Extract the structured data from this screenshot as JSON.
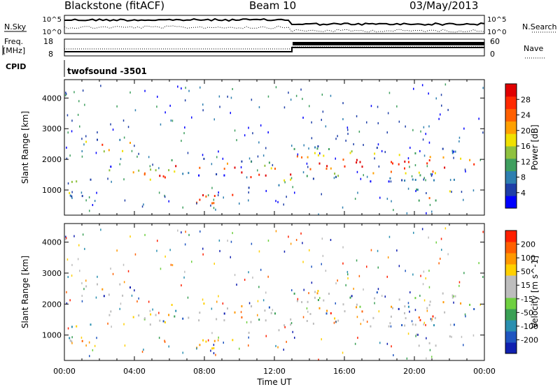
{
  "header": {
    "station": "Blackstone (fitACF)",
    "beam": "Beam 10",
    "date": "03/May/2013"
  },
  "noise_panel": {
    "left_label": "N.Sky",
    "right_label": "N.Search",
    "ticks": [
      "10^5",
      "10^0"
    ]
  },
  "freq_panel": {
    "left_label_1": "Freq.",
    "left_label_2": "[MHz]",
    "left_ticks": [
      "18",
      "8"
    ],
    "right_label": "Nave",
    "right_ticks": [
      "60",
      "0"
    ]
  },
  "cpid_panel": {
    "label": "CPID",
    "value": "twofsound -3501"
  },
  "x_axis": {
    "label": "Time UT",
    "ticks": [
      "00:00",
      "04:00",
      "08:00",
      "12:00",
      "16:00",
      "20:00",
      "00:00"
    ]
  },
  "power_panel": {
    "ylabel": "Slant Range [km]",
    "colorbar_label": "Power [dB]",
    "colorbar_ticks": [
      "28",
      "24",
      "20",
      "16",
      "12",
      "8",
      "4"
    ],
    "colors": [
      "#0000ff",
      "#1f3fa8",
      "#2e7fb0",
      "#3f9f5f",
      "#8fc13f",
      "#f0e000",
      "#ffa000",
      "#ff6000",
      "#ff2a00",
      "#e00000"
    ]
  },
  "velocity_panel": {
    "ylabel": "Slant Range [km]",
    "colorbar_label": "Velocity [m s^-1]",
    "colorbar_ticks": [
      "200",
      "100",
      "50",
      "15",
      "-15",
      "-50",
      "-100",
      "-200"
    ],
    "colors": [
      "#1020b0",
      "#1f55c0",
      "#2a8fb0",
      "#3aa055",
      "#6fd040",
      "#bdbdbd",
      "#bdbdbd",
      "#ffd000",
      "#ff9800",
      "#ff6000",
      "#ff2000"
    ]
  },
  "chart_data": {
    "type": "heatmap",
    "x_range_hours": [
      0,
      24
    ],
    "y_range_km": [
      180,
      4600
    ],
    "y_ticks": [
      1000,
      2000,
      3000,
      4000
    ],
    "x_ticks_hours": [
      0,
      4,
      8,
      12,
      16,
      20,
      24
    ],
    "frequency_mhz": [
      {
        "time": "00:00",
        "value": 10.5
      },
      {
        "time": "13:00",
        "value": 10.5
      },
      {
        "time": "13:00",
        "value": 13.0
      },
      {
        "time": "24:00",
        "value": 13.0
      }
    ],
    "echo_bands": [
      {
        "t0": 0,
        "t1": 2,
        "r0": 800,
        "r1": 1400
      },
      {
        "t0": 2,
        "t1": 6,
        "r0": 1200,
        "r1": 1800
      },
      {
        "t0": 6,
        "t1": 10,
        "r0": 1500,
        "r1": 2100
      },
      {
        "t0": 10,
        "t1": 13,
        "r0": 1100,
        "r1": 2000
      },
      {
        "t0": 6,
        "t1": 10.5,
        "r0": 600,
        "r1": 900
      },
      {
        "t0": 13,
        "t1": 18,
        "r0": 1300,
        "r1": 2500
      },
      {
        "t0": 18.5,
        "t1": 24,
        "r0": 1300,
        "r1": 2400
      },
      {
        "t0": 20,
        "t1": 22,
        "r0": 600,
        "r1": 1100
      },
      {
        "t0": 1,
        "t1": 4,
        "r0": 2200,
        "r1": 2700
      }
    ]
  }
}
